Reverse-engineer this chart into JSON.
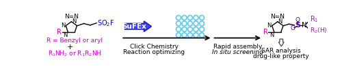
{
  "bg_color": "#ffffff",
  "magenta": "#cc00cc",
  "blue_circle_color": "#66ccee",
  "sufex_arrow_face": "#4444ee",
  "sufex_arrow_edge": "#2222bb",
  "sulfo_purple": "#6600aa",
  "black": "#000000",
  "sufex_label": "SuFEx",
  "label1_line1": "Click Chemistry",
  "label1_line2": "Reaction optimizing",
  "label2_line1": "Rapid assembly",
  "label2_line2": "In situ screening",
  "label3_line1": "SAR analysis",
  "label3_line2": "drug-like property",
  "fig_width": 5.0,
  "fig_height": 1.04
}
